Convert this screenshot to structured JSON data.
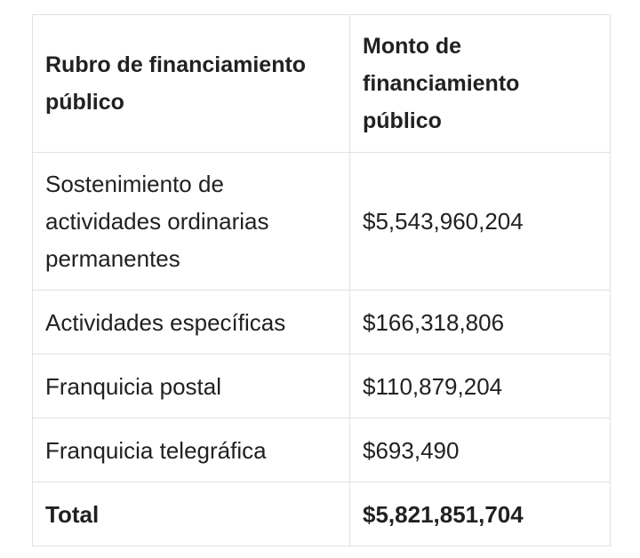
{
  "table": {
    "headers": [
      "Rubro de financiamiento público",
      "Monto de financiamiento público"
    ],
    "rows": [
      {
        "rubro": "Sostenimiento de actividades ordinarias permanentes",
        "monto": "$5,543,960,204"
      },
      {
        "rubro": "Actividades específicas",
        "monto": "$166,318,806"
      },
      {
        "rubro": "Franquicia postal",
        "monto": "$110,879,204"
      },
      {
        "rubro": "Franquicia telegráfica",
        "monto": "$693,490"
      }
    ],
    "total": {
      "rubro": "Total",
      "monto": "$5,821,851,704"
    }
  }
}
